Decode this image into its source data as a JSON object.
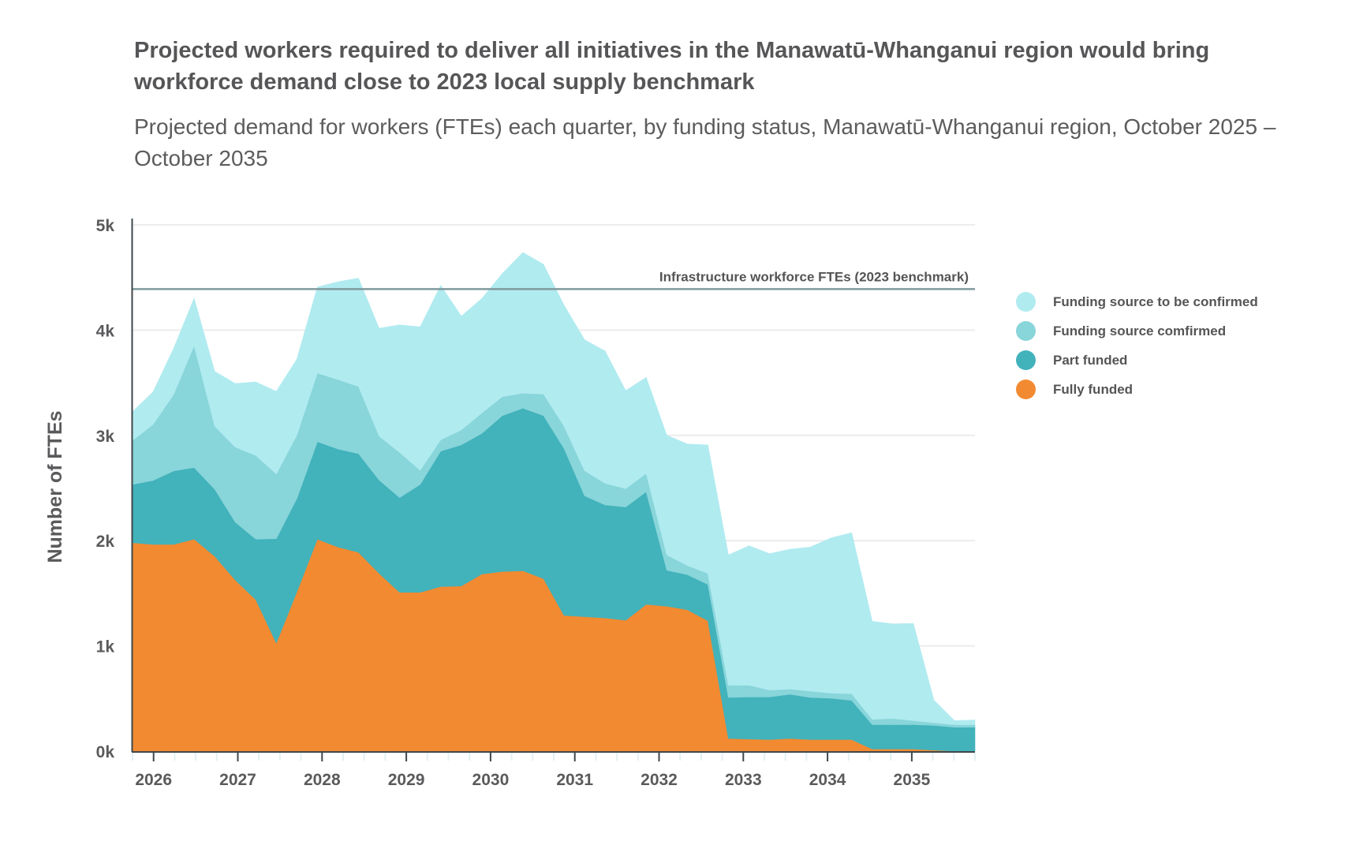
{
  "title": "Projected workers required to deliver all initiatives in the Manawatū-Whanganui region would bring workforce demand close to 2023 local supply benchmark",
  "subtitle": "Projected demand for workers (FTEs) each quarter, by funding status, Manawatū-Whanganui region, October 2025 – October 2035",
  "chart_data": {
    "type": "area",
    "stacked": true,
    "title": "Projected workers required to deliver all initiatives in the Manawatū-Whanganui region would bring workforce demand close to 2023 local supply benchmark",
    "subtitle": "Projected demand for workers (FTEs) each quarter, by funding status, Manawatū-Whanganui region, October 2025 – October 2035",
    "xlabel": "",
    "ylabel": "Number of FTEs",
    "ylim": [
      0,
      5000
    ],
    "xlim": [
      2025.75,
      2035.75
    ],
    "grid": true,
    "legend_position": "right",
    "y_ticks": [
      {
        "value": 0,
        "label": "0k"
      },
      {
        "value": 1000,
        "label": "1k"
      },
      {
        "value": 2000,
        "label": "2k"
      },
      {
        "value": 3000,
        "label": "3k"
      },
      {
        "value": 4000,
        "label": "4k"
      },
      {
        "value": 5000,
        "label": "5k"
      }
    ],
    "x_ticks": [
      {
        "value": 2026,
        "label": "2026"
      },
      {
        "value": 2027,
        "label": "2027"
      },
      {
        "value": 2028,
        "label": "2028"
      },
      {
        "value": 2029,
        "label": "2029"
      },
      {
        "value": 2030,
        "label": "2030"
      },
      {
        "value": 2031,
        "label": "2031"
      },
      {
        "value": 2032,
        "label": "2032"
      },
      {
        "value": 2033,
        "label": "2033"
      },
      {
        "value": 2034,
        "label": "2034"
      },
      {
        "value": 2035,
        "label": "2035"
      }
    ],
    "x_start": 2025.75,
    "x_end": 2035.75,
    "point_count": 42,
    "benchmark": {
      "label": "Infrastructure workforce FTEs (2023 benchmark)",
      "value": 4390,
      "color": "#7f9a9e"
    },
    "series": [
      {
        "name": "Fully funded",
        "color": "#f28a31",
        "values": [
          1980,
          1964,
          1964,
          2014,
          1852,
          1627,
          1439,
          1027,
          1514,
          2014,
          1939,
          1889,
          1689,
          1509,
          1509,
          1564,
          1569,
          1682,
          1707,
          1714,
          1639,
          1289,
          1277,
          1265,
          1244,
          1394,
          1377,
          1344,
          1239,
          120,
          115,
          110,
          120,
          110,
          110,
          110,
          20,
          20,
          20,
          10,
          0,
          0
        ]
      },
      {
        "name": "Part funded",
        "color": "#42b2bb",
        "values": [
          554,
          607,
          699,
          680,
          637,
          549,
          575,
          992,
          887,
          925,
          931,
          937,
          887,
          900,
          1025,
          1287,
          1340,
          1336,
          1481,
          1544,
          1549,
          1587,
          1149,
          1074,
          1075,
          1070,
          342,
          333,
          345,
          390,
          400,
          405,
          420,
          400,
          392,
          372,
          232,
          232,
          232,
          235,
          227,
          227
        ]
      },
      {
        "name": "Funding source comfirmed",
        "color": "#88d5da",
        "values": [
          419,
          532,
          725,
          1159,
          599,
          713,
          795,
          615,
          602,
          654,
          660,
          639,
          417,
          429,
          135,
          107,
          142,
          195,
          180,
          143,
          205,
          212,
          238,
          205,
          175,
          175,
          145,
          87,
          105,
          117,
          112,
          65,
          50,
          60,
          50,
          63,
          50,
          58,
          38,
          25,
          25,
          25
        ]
      },
      {
        "name": "Funding source to be confirmed",
        "color": "#b0ebf0",
        "values": [
          272,
          310,
          438,
          450,
          520,
          604,
          699,
          784,
          723,
          817,
          930,
          1028,
          1025,
          1212,
          1362,
          1467,
          1082,
          1087,
          1170,
          1337,
          1232,
          1150,
          1244,
          1257,
          932,
          912,
          1137,
          1154,
          1220,
          1237,
          1324,
          1296,
          1329,
          1369,
          1474,
          1531,
          932,
          899,
          924,
          215,
          38,
          45
        ]
      }
    ],
    "legend": [
      {
        "label": "Funding source to be confirmed",
        "color": "#b0ebf0"
      },
      {
        "label": "Funding source comfirmed",
        "color": "#88d5da"
      },
      {
        "label": "Part funded",
        "color": "#42b2bb"
      },
      {
        "label": "Fully funded",
        "color": "#f28a31"
      }
    ]
  }
}
